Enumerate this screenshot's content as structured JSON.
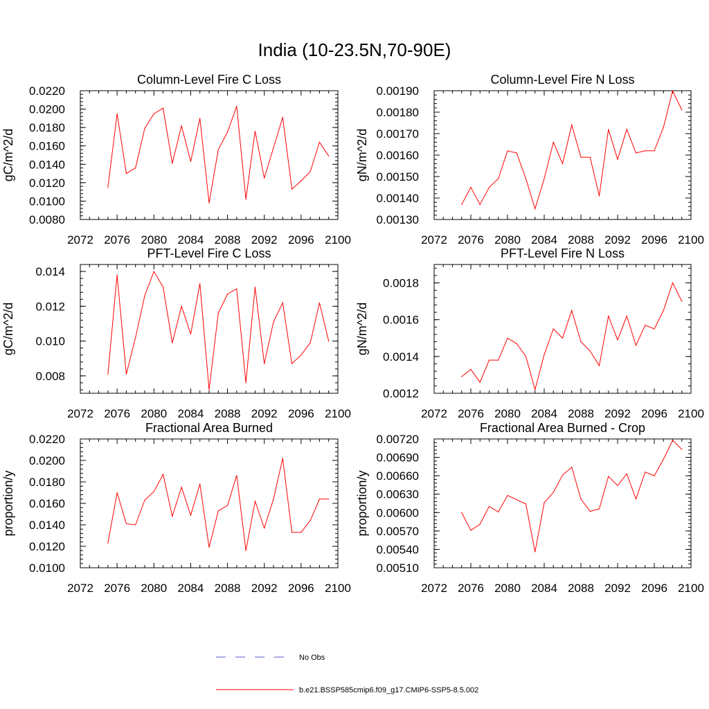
{
  "figure": {
    "title": "India (10-23.5N,70-90E)"
  },
  "legend": {
    "items": [
      {
        "label": "No Obs",
        "style": "dashed",
        "color": "#5a5ad0"
      },
      {
        "label": "b.e21.BSSP585cmip6.f09_g17.CMIP6-SSP5-8.5.002",
        "style": "solid",
        "color": "#ff0000"
      }
    ]
  },
  "chart_data": [
    {
      "type": "line",
      "title": "Column-Level Fire C Loss",
      "ylabel": "gC/m^2/d",
      "xlim": [
        2072,
        2100
      ],
      "ylim": [
        0.008,
        0.022
      ],
      "xticks": [
        "2072",
        "2076",
        "2080",
        "2084",
        "2088",
        "2092",
        "2096",
        "2100"
      ],
      "yticks": [
        "0.0080",
        "0.0100",
        "0.0120",
        "0.0140",
        "0.0160",
        "0.0180",
        "0.0200",
        "0.0220"
      ],
      "x": [
        2075,
        2076,
        2077,
        2078,
        2079,
        2080,
        2081,
        2082,
        2083,
        2084,
        2085,
        2086,
        2087,
        2088,
        2089,
        2090,
        2091,
        2092,
        2093,
        2094,
        2095,
        2096,
        2097,
        2098,
        2099
      ],
      "series": [
        {
          "color": "#ff0000",
          "values": [
            0.0115,
            0.0195,
            0.013,
            0.0136,
            0.0179,
            0.0195,
            0.0201,
            0.0141,
            0.0182,
            0.0143,
            0.019,
            0.0098,
            0.0156,
            0.0175,
            0.0203,
            0.0102,
            0.0176,
            0.0125,
            0.0158,
            0.0191,
            0.0113,
            0.0122,
            0.0132,
            0.0164,
            0.0149
          ]
        }
      ]
    },
    {
      "type": "line",
      "title": "Column-Level Fire N Loss",
      "ylabel": "gN/m^2/d",
      "xlim": [
        2072,
        2100
      ],
      "ylim": [
        0.0013,
        0.0019
      ],
      "xticks": [
        "2072",
        "2076",
        "2080",
        "2084",
        "2088",
        "2092",
        "2096",
        "2100"
      ],
      "yticks": [
        "0.00130",
        "0.00140",
        "0.00150",
        "0.00160",
        "0.00170",
        "0.00180",
        "0.00190"
      ],
      "x": [
        2075,
        2076,
        2077,
        2078,
        2079,
        2080,
        2081,
        2082,
        2083,
        2084,
        2085,
        2086,
        2087,
        2088,
        2089,
        2090,
        2091,
        2092,
        2093,
        2094,
        2095,
        2096,
        2097,
        2098,
        2099
      ],
      "series": [
        {
          "color": "#ff0000",
          "values": [
            0.00137,
            0.00145,
            0.00137,
            0.00145,
            0.00149,
            0.00162,
            0.00161,
            0.00149,
            0.00135,
            0.00149,
            0.00166,
            0.00156,
            0.00174,
            0.00159,
            0.00159,
            0.00141,
            0.00172,
            0.00158,
            0.00172,
            0.00161,
            0.00162,
            0.00162,
            0.00173,
            0.0019,
            0.00181
          ]
        }
      ]
    },
    {
      "type": "line",
      "title": "PFT-Level Fire C Loss",
      "ylabel": "gC/m^2/d",
      "xlim": [
        2072,
        2100
      ],
      "ylim": [
        0.007,
        0.0144
      ],
      "xticks": [
        "2072",
        "2076",
        "2080",
        "2084",
        "2088",
        "2092",
        "2096",
        "2100"
      ],
      "yticks": [
        "0.008",
        "0.010",
        "0.012",
        "0.014"
      ],
      "ytick_values": [
        0.008,
        0.01,
        0.012,
        0.014
      ],
      "x": [
        2075,
        2076,
        2077,
        2078,
        2079,
        2080,
        2081,
        2082,
        2083,
        2084,
        2085,
        2086,
        2087,
        2088,
        2089,
        2090,
        2091,
        2092,
        2093,
        2094,
        2095,
        2096,
        2097,
        2098,
        2099
      ],
      "series": [
        {
          "color": "#ff0000",
          "values": [
            0.0081,
            0.0138,
            0.0081,
            0.0102,
            0.0126,
            0.014,
            0.0131,
            0.0099,
            0.012,
            0.0104,
            0.0133,
            0.0072,
            0.0116,
            0.0127,
            0.013,
            0.0076,
            0.0131,
            0.0087,
            0.0111,
            0.0122,
            0.0087,
            0.0092,
            0.0099,
            0.0122,
            0.01
          ]
        }
      ]
    },
    {
      "type": "line",
      "title": "PFT-Level Fire N Loss",
      "ylabel": "gN/m^2/d",
      "xlim": [
        2072,
        2100
      ],
      "ylim": [
        0.0012,
        0.0019
      ],
      "xticks": [
        "2072",
        "2076",
        "2080",
        "2084",
        "2088",
        "2092",
        "2096",
        "2100"
      ],
      "yticks": [
        "0.0012",
        "0.0014",
        "0.0016",
        "0.0018"
      ],
      "ytick_values": [
        0.0012,
        0.0014,
        0.0016,
        0.0018
      ],
      "x": [
        2075,
        2076,
        2077,
        2078,
        2079,
        2080,
        2081,
        2082,
        2083,
        2084,
        2085,
        2086,
        2087,
        2088,
        2089,
        2090,
        2091,
        2092,
        2093,
        2094,
        2095,
        2096,
        2097,
        2098,
        2099
      ],
      "series": [
        {
          "color": "#ff0000",
          "values": [
            0.00129,
            0.00133,
            0.00126,
            0.00138,
            0.00138,
            0.0015,
            0.00147,
            0.0014,
            0.00122,
            0.00141,
            0.00155,
            0.0015,
            0.00165,
            0.00148,
            0.00143,
            0.00135,
            0.00162,
            0.00149,
            0.00162,
            0.00146,
            0.00157,
            0.00155,
            0.00165,
            0.0018,
            0.0017
          ]
        }
      ]
    },
    {
      "type": "line",
      "title": "Fractional Area Burned",
      "ylabel": "proportion/y",
      "xlim": [
        2072,
        2100
      ],
      "ylim": [
        0.01,
        0.022
      ],
      "xticks": [
        "2072",
        "2076",
        "2080",
        "2084",
        "2088",
        "2092",
        "2096",
        "2100"
      ],
      "yticks": [
        "0.0100",
        "0.0120",
        "0.0140",
        "0.0160",
        "0.0180",
        "0.0200",
        "0.0220"
      ],
      "x": [
        2075,
        2076,
        2077,
        2078,
        2079,
        2080,
        2081,
        2082,
        2083,
        2084,
        2085,
        2086,
        2087,
        2088,
        2089,
        2090,
        2091,
        2092,
        2093,
        2094,
        2095,
        2096,
        2097,
        2098,
        2099
      ],
      "series": [
        {
          "color": "#ff0000",
          "values": [
            0.0123,
            0.017,
            0.0141,
            0.014,
            0.0163,
            0.0171,
            0.0187,
            0.0148,
            0.0175,
            0.0149,
            0.0178,
            0.0119,
            0.0153,
            0.0158,
            0.0186,
            0.0116,
            0.0162,
            0.0137,
            0.0164,
            0.0202,
            0.0133,
            0.0133,
            0.0144,
            0.0164,
            0.0164
          ]
        }
      ]
    },
    {
      "type": "line",
      "title": "Fractional Area Burned - Crop",
      "ylabel": "proportion/y",
      "xlim": [
        2072,
        2100
      ],
      "ylim": [
        0.0051,
        0.0072
      ],
      "xticks": [
        "2072",
        "2076",
        "2080",
        "2084",
        "2088",
        "2092",
        "2096",
        "2100"
      ],
      "yticks": [
        "0.00510",
        "0.00540",
        "0.00570",
        "0.00600",
        "0.00630",
        "0.00660",
        "0.00690",
        "0.00720"
      ],
      "x": [
        2075,
        2076,
        2077,
        2078,
        2079,
        2080,
        2081,
        2082,
        2083,
        2084,
        2085,
        2086,
        2087,
        2088,
        2089,
        2090,
        2091,
        2092,
        2093,
        2094,
        2095,
        2096,
        2097,
        2098,
        2099
      ],
      "series": [
        {
          "color": "#ff0000",
          "values": [
            0.006,
            0.00571,
            0.00581,
            0.0061,
            0.00601,
            0.00628,
            0.00621,
            0.00614,
            0.00536,
            0.00616,
            0.00633,
            0.00661,
            0.00674,
            0.00622,
            0.00602,
            0.00606,
            0.00659,
            0.00644,
            0.00663,
            0.00622,
            0.00666,
            0.0066,
            0.00687,
            0.00718,
            0.00703
          ]
        }
      ]
    }
  ]
}
